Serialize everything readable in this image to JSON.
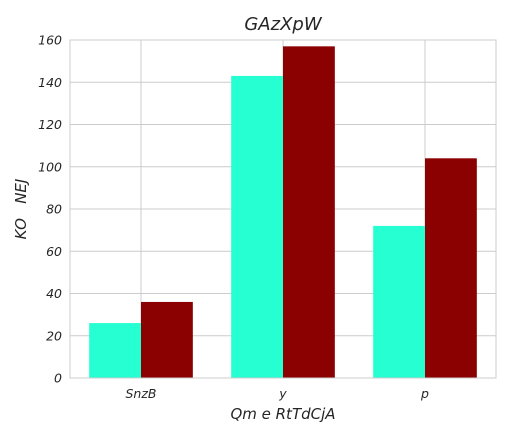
{
  "chart_data": {
    "type": "bar",
    "title": "GAzXpW",
    "xlabel": "Qm e RtTdCjA",
    "ylabel": "KO   NEJ",
    "categories": [
      "SnzB",
      "y",
      "p"
    ],
    "series": [
      {
        "values": [
          26,
          143,
          72
        ],
        "color": "#26ffd2"
      },
      {
        "values": [
          36,
          157,
          104
        ],
        "color": "#8b0000"
      }
    ],
    "ylim": [
      0,
      160
    ],
    "yticks": [
      0,
      20,
      40,
      60,
      80,
      100,
      120,
      140,
      160
    ],
    "grid": true,
    "legend": "none"
  }
}
